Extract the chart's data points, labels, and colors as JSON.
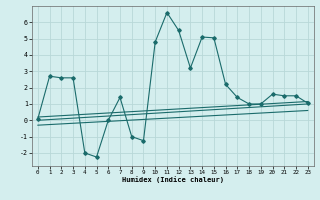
{
  "xlabel": "Humidex (Indice chaleur)",
  "background_color": "#d4eeee",
  "grid_color": "#b8d8d8",
  "line_color": "#1a6b6b",
  "xlim": [
    -0.5,
    23.5
  ],
  "ylim": [
    -2.8,
    7.0
  ],
  "xticks": [
    0,
    1,
    2,
    3,
    4,
    5,
    6,
    7,
    8,
    9,
    10,
    11,
    12,
    13,
    14,
    15,
    16,
    17,
    18,
    19,
    20,
    21,
    22,
    23
  ],
  "yticks": [
    -2,
    -1,
    0,
    1,
    2,
    3,
    4,
    5,
    6
  ],
  "main_line_x": [
    0,
    1,
    2,
    3,
    4,
    5,
    6,
    7,
    8,
    9,
    10,
    11,
    12,
    13,
    14,
    15,
    16,
    17,
    18,
    19,
    20,
    21,
    22,
    23
  ],
  "main_line_y": [
    0.1,
    2.7,
    2.6,
    2.6,
    -2.0,
    -2.25,
    0.0,
    1.4,
    -1.0,
    -1.25,
    4.8,
    6.6,
    5.5,
    3.2,
    5.1,
    5.05,
    2.2,
    1.4,
    1.0,
    1.0,
    1.6,
    1.5,
    1.5,
    1.05
  ],
  "lower_line_x": [
    0,
    23
  ],
  "lower_line_y": [
    -0.3,
    0.6
  ],
  "mid_line_x": [
    0,
    23
  ],
  "mid_line_y": [
    0.0,
    1.0
  ],
  "upper_line_x": [
    0,
    23
  ],
  "upper_line_y": [
    0.2,
    1.15
  ]
}
